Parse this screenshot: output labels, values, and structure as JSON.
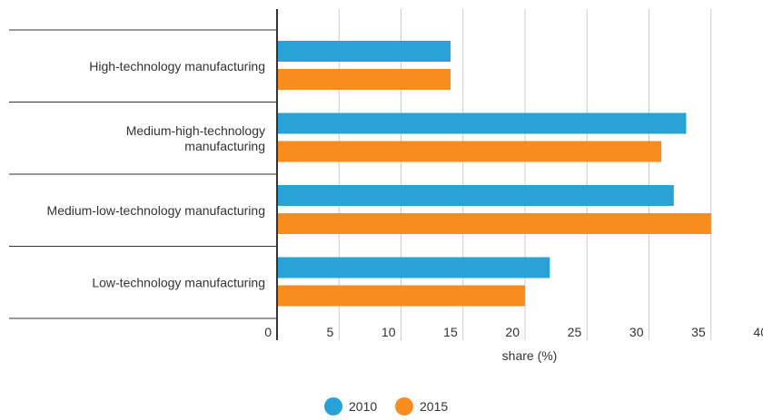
{
  "chart_data": {
    "type": "bar",
    "orientation": "horizontal",
    "categories": [
      [
        "High-technology manufacturing"
      ],
      [
        "Medium-high-technology",
        "manufacturing"
      ],
      [
        "Medium-low-technology manufacturing"
      ],
      [
        "Low-technology manufacturing"
      ]
    ],
    "series": [
      {
        "name": "2010",
        "color": "#29a3d6",
        "values": [
          14.0,
          33.0,
          32.0,
          22.0
        ]
      },
      {
        "name": "2015",
        "color": "#f98c1e",
        "values": [
          14.0,
          31.0,
          35.0,
          20.0
        ]
      }
    ],
    "xlabel": "share (%)",
    "xlim": [
      0,
      40
    ],
    "xticks": [
      0,
      5,
      10,
      15,
      20,
      25,
      30,
      35,
      40
    ],
    "grid": true,
    "legend_position": "bottom"
  }
}
